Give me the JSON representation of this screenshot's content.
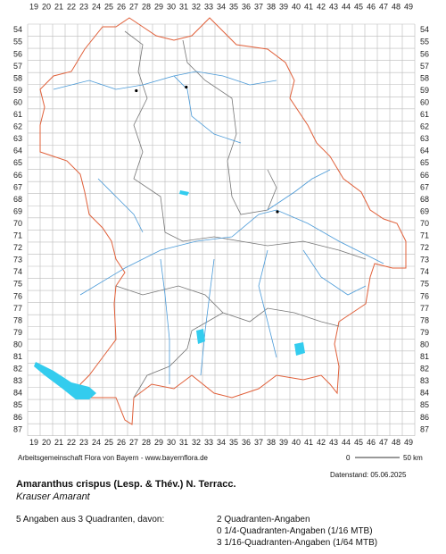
{
  "map": {
    "columns": [
      19,
      20,
      21,
      22,
      23,
      24,
      25,
      26,
      27,
      28,
      29,
      30,
      31,
      32,
      33,
      34,
      35,
      36,
      37,
      38,
      39,
      40,
      41,
      42,
      43,
      44,
      45,
      46,
      47,
      48,
      49
    ],
    "rows": [
      54,
      55,
      56,
      57,
      58,
      59,
      60,
      61,
      62,
      63,
      64,
      65,
      66,
      67,
      68,
      69,
      70,
      71,
      72,
      73,
      74,
      75,
      76,
      77,
      78,
      79,
      80,
      81,
      82,
      83,
      84,
      85,
      86,
      87
    ],
    "observations": [
      {
        "col": 27.2,
        "row": 59
      },
      {
        "col": 31.2,
        "row": 58.7
      },
      {
        "col": 38.5,
        "row": 69
      }
    ],
    "credit": "Arbeitsgemeinschaft Flora von Bayern - www.bayernflora.de",
    "scale_start": "0",
    "scale_end": "50 km",
    "date": "Datenstand: 05.06.2025",
    "title": "Amaranthus crispus (Lesp. & Thév.) N. Terracc.",
    "common_name": "Krauser Amarant",
    "summary": "5 Angaben aus 3 Quadranten, davon:",
    "counts": [
      "2 Quadranten-Angaben",
      "0 1/4-Quadranten-Angaben (1/16 MTB)",
      "3 1/16-Quadranten-Angaben (1/64 MTB)"
    ]
  }
}
